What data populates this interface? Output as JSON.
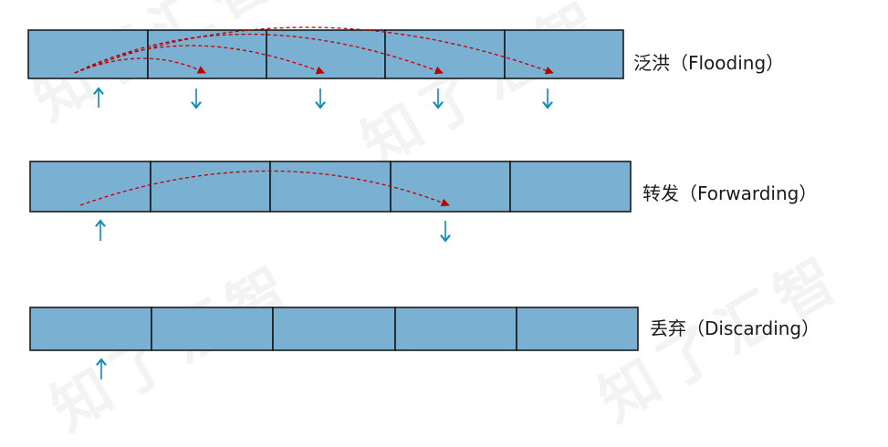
{
  "watermark": "知了汇智",
  "colors": {
    "cell_fill": "#7ab0d2",
    "cell_border": "#111111",
    "flow_arrow": "#c00000",
    "port_arrow": "#0a8bb8",
    "label": "#1a1a1a"
  },
  "rows": [
    {
      "label": "泛洪（Flooding）",
      "cells": 5,
      "ingress_port": 1,
      "egress_ports": [
        2,
        3,
        4,
        5
      ]
    },
    {
      "label": "转发（Forwarding）",
      "cells": 5,
      "ingress_port": 1,
      "egress_ports": [
        4
      ]
    },
    {
      "label": "丢弃（Discarding）",
      "cells": 5,
      "ingress_port": 1,
      "egress_ports": []
    }
  ]
}
